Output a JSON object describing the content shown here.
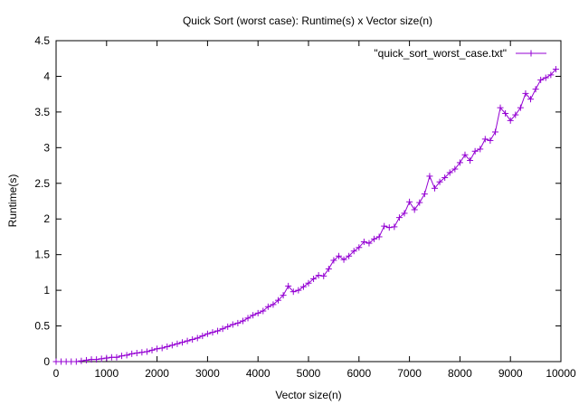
{
  "chart_data": {
    "type": "line",
    "title": "Quick Sort (worst case): Runtime(s) x Vector size(n)",
    "xlabel": "Vector size(n)",
    "ylabel": "Runtime(s)",
    "xlim": [
      0,
      10000
    ],
    "ylim": [
      0,
      4.5
    ],
    "x_ticks": [
      "0",
      "1000",
      "2000",
      "3000",
      "4000",
      "5000",
      "6000",
      "7000",
      "8000",
      "9000",
      "10000"
    ],
    "y_ticks": [
      "0",
      "0.5",
      "1",
      "1.5",
      "2",
      "2.5",
      "3",
      "3.5",
      "4",
      "4.5"
    ],
    "grid": false,
    "legend_position": "top-right",
    "series": [
      {
        "name": "\"quick_sort_worst_case.txt\"",
        "color": "#9400d3",
        "marker": "plus",
        "x": [
          0,
          100,
          200,
          300,
          400,
          500,
          600,
          700,
          800,
          900,
          1000,
          1100,
          1200,
          1300,
          1400,
          1500,
          1600,
          1700,
          1800,
          1900,
          2000,
          2100,
          2200,
          2300,
          2400,
          2500,
          2600,
          2700,
          2800,
          2900,
          3000,
          3100,
          3200,
          3300,
          3400,
          3500,
          3600,
          3700,
          3800,
          3900,
          4000,
          4100,
          4200,
          4300,
          4400,
          4500,
          4600,
          4700,
          4800,
          4900,
          5000,
          5100,
          5200,
          5300,
          5400,
          5500,
          5600,
          5700,
          5800,
          5900,
          6000,
          6100,
          6200,
          6300,
          6400,
          6500,
          6600,
          6700,
          6800,
          6900,
          7000,
          7100,
          7200,
          7300,
          7400,
          7500,
          7600,
          7700,
          7800,
          7900,
          8000,
          8100,
          8200,
          8300,
          8400,
          8500,
          8600,
          8700,
          8800,
          8900,
          9000,
          9100,
          9200,
          9300,
          9400,
          9500,
          9600,
          9700,
          9800,
          9900
        ],
        "values": [
          0.0,
          0.0,
          0.0,
          0.0,
          0.0,
          0.01,
          0.02,
          0.03,
          0.03,
          0.04,
          0.05,
          0.06,
          0.06,
          0.08,
          0.09,
          0.11,
          0.12,
          0.13,
          0.14,
          0.16,
          0.18,
          0.19,
          0.21,
          0.23,
          0.25,
          0.27,
          0.29,
          0.31,
          0.33,
          0.36,
          0.39,
          0.41,
          0.43,
          0.46,
          0.49,
          0.52,
          0.54,
          0.57,
          0.61,
          0.65,
          0.68,
          0.71,
          0.77,
          0.8,
          0.86,
          0.93,
          1.06,
          0.98,
          1.0,
          1.05,
          1.1,
          1.16,
          1.21,
          1.2,
          1.3,
          1.42,
          1.48,
          1.43,
          1.48,
          1.55,
          1.6,
          1.68,
          1.66,
          1.72,
          1.75,
          1.9,
          1.88,
          1.89,
          2.02,
          2.08,
          2.24,
          2.13,
          2.23,
          2.35,
          2.6,
          2.43,
          2.52,
          2.58,
          2.65,
          2.7,
          2.79,
          2.9,
          2.82,
          2.95,
          2.98,
          3.12,
          3.1,
          3.22,
          3.56,
          3.48,
          3.38,
          3.46,
          3.56,
          3.76,
          3.68,
          3.82,
          3.95,
          3.98,
          4.02,
          4.1
        ]
      }
    ]
  }
}
